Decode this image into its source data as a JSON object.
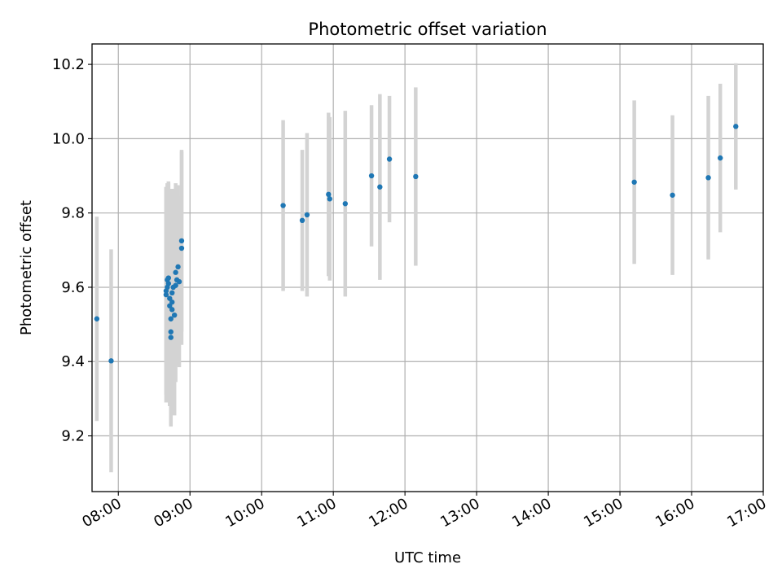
{
  "chart_data": {
    "type": "scatter",
    "title": "Photometric offset variation",
    "xlabel": "UTC time",
    "ylabel": "Photometric offset",
    "x_ticks": [
      "08:00",
      "09:00",
      "10:00",
      "11:00",
      "12:00",
      "13:00",
      "14:00",
      "15:00",
      "16:00",
      "17:00"
    ],
    "y_ticks": [
      "9.2",
      "9.4",
      "9.6",
      "9.8",
      "10.0",
      "10.2"
    ],
    "xlim": [
      "07:38",
      "17:00"
    ],
    "ylim": [
      9.05,
      10.255
    ],
    "grid": true,
    "colors": {
      "point": "#1f77b4",
      "errorbar": "#d3d3d3",
      "grid": "#b0b0b0",
      "axes": "#000000"
    },
    "points": [
      {
        "x": "07:42",
        "y": 9.515,
        "err": 0.275
      },
      {
        "x": "07:54",
        "y": 9.402,
        "err": 0.3
      },
      {
        "x": "08:40",
        "y": 9.59,
        "err": 0.28
      },
      {
        "x": "08:40",
        "y": 9.58,
        "err": 0.29
      },
      {
        "x": "08:41",
        "y": 9.6,
        "err": 0.27
      },
      {
        "x": "08:41",
        "y": 9.62,
        "err": 0.26
      },
      {
        "x": "08:42",
        "y": 9.625,
        "err": 0.26
      },
      {
        "x": "08:42",
        "y": 9.61,
        "err": 0.27
      },
      {
        "x": "08:43",
        "y": 9.57,
        "err": 0.28
      },
      {
        "x": "08:43",
        "y": 9.55,
        "err": 0.27
      },
      {
        "x": "08:44",
        "y": 9.48,
        "err": 0.25
      },
      {
        "x": "08:44",
        "y": 9.465,
        "err": 0.24
      },
      {
        "x": "08:44",
        "y": 9.515,
        "err": 0.25
      },
      {
        "x": "08:45",
        "y": 9.54,
        "err": 0.26
      },
      {
        "x": "08:45",
        "y": 9.56,
        "err": 0.27
      },
      {
        "x": "08:45",
        "y": 9.585,
        "err": 0.28
      },
      {
        "x": "08:46",
        "y": 9.6,
        "err": 0.26
      },
      {
        "x": "08:47",
        "y": 9.525,
        "err": 0.27
      },
      {
        "x": "08:48",
        "y": 9.605,
        "err": 0.26
      },
      {
        "x": "08:48",
        "y": 9.64,
        "err": 0.24
      },
      {
        "x": "08:49",
        "y": 9.62,
        "err": 0.23
      },
      {
        "x": "08:50",
        "y": 9.655,
        "err": 0.22
      },
      {
        "x": "08:51",
        "y": 9.615,
        "err": 0.23
      },
      {
        "x": "08:53",
        "y": 9.725,
        "err": 0.245
      },
      {
        "x": "08:53",
        "y": 9.705,
        "err": 0.26
      },
      {
        "x": "10:18",
        "y": 9.82,
        "err": 0.23
      },
      {
        "x": "10:34",
        "y": 9.78,
        "err": 0.19
      },
      {
        "x": "10:38",
        "y": 9.795,
        "err": 0.22
      },
      {
        "x": "10:56",
        "y": 9.85,
        "err": 0.22
      },
      {
        "x": "10:57",
        "y": 9.838,
        "err": 0.22
      },
      {
        "x": "11:10",
        "y": 9.825,
        "err": 0.25
      },
      {
        "x": "11:32",
        "y": 9.9,
        "err": 0.19
      },
      {
        "x": "11:39",
        "y": 9.87,
        "err": 0.25
      },
      {
        "x": "11:47",
        "y": 9.945,
        "err": 0.17
      },
      {
        "x": "12:09",
        "y": 9.898,
        "err": 0.24
      },
      {
        "x": "15:12",
        "y": 9.883,
        "err": 0.22
      },
      {
        "x": "15:44",
        "y": 9.848,
        "err": 0.215
      },
      {
        "x": "16:14",
        "y": 9.895,
        "err": 0.22
      },
      {
        "x": "16:24",
        "y": 9.948,
        "err": 0.2
      },
      {
        "x": "16:37",
        "y": 10.033,
        "err": 0.17
      }
    ]
  }
}
